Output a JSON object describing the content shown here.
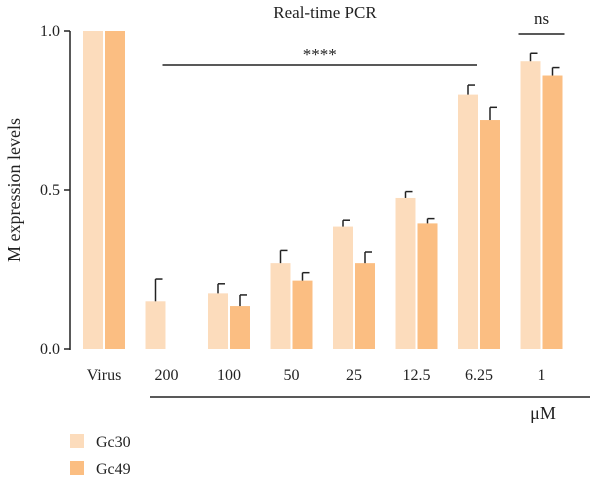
{
  "chart_data": {
    "type": "bar",
    "title": "Real-time PCR",
    "ylabel": "M expression levels",
    "xlabel": "μM",
    "ylim": [
      0,
      1.0
    ],
    "yticks": [
      "0.0",
      "0.5",
      "1.0"
    ],
    "categories": [
      "Virus",
      "200",
      "100",
      "50",
      "25",
      "12.5",
      "6.25",
      "1"
    ],
    "series": [
      {
        "name": "Gc30",
        "color": "#fcdcbc",
        "values": [
          1.0,
          0.15,
          0.175,
          0.27,
          0.385,
          0.475,
          0.8,
          0.905
        ],
        "errors": [
          0,
          0.07,
          0.03,
          0.04,
          0.02,
          0.02,
          0.03,
          0.025
        ]
      },
      {
        "name": "Gc49",
        "color": "#fbbe82",
        "values": [
          1.0,
          0.0,
          0.135,
          0.215,
          0.27,
          0.395,
          0.72,
          0.86
        ],
        "errors": [
          0,
          0,
          0.035,
          0.025,
          0.035,
          0.015,
          0.04,
          0.025
        ]
      }
    ],
    "annotations": [
      {
        "label": "****",
        "from_category": "200",
        "to_category": "6.25"
      },
      {
        "label": "ns",
        "from_category": "1",
        "to_category": "1"
      }
    ],
    "legend_position": "bottom-left",
    "grid": false
  }
}
